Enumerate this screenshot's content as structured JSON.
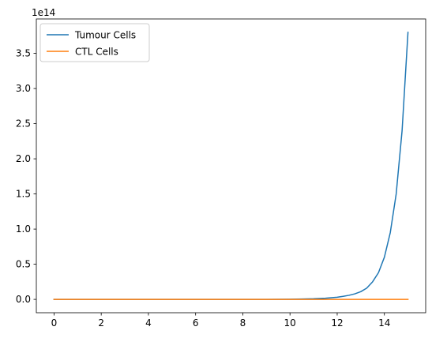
{
  "chart_data": {
    "type": "line",
    "title": "",
    "xlabel": "",
    "ylabel": "",
    "y_offset_label": "1e14",
    "xlim": [
      -0.75,
      15.75
    ],
    "ylim": [
      -0.19,
      3.99
    ],
    "x_ticks": [
      0,
      2,
      4,
      6,
      8,
      10,
      12,
      14
    ],
    "x_tick_labels": [
      "0",
      "2",
      "4",
      "6",
      "8",
      "10",
      "12",
      "14"
    ],
    "y_ticks": [
      0.0,
      0.5,
      1.0,
      1.5,
      2.0,
      2.5,
      3.0,
      3.5
    ],
    "y_tick_labels": [
      "0.0",
      "0.5",
      "1.0",
      "1.5",
      "2.0",
      "2.5",
      "3.0",
      "3.5"
    ],
    "grid": false,
    "legend_position": "upper-left",
    "series": [
      {
        "name": "Tumour Cells",
        "color": "#1f77b4",
        "x": [
          0,
          1,
          2,
          3,
          4,
          5,
          6,
          7,
          8,
          9,
          10,
          10.5,
          11,
          11.5,
          12,
          12.25,
          12.5,
          12.75,
          13,
          13.25,
          13.5,
          13.75,
          14,
          14.25,
          14.5,
          14.75,
          15
        ],
        "y": [
          0,
          0,
          0,
          0,
          0,
          0,
          0,
          0,
          0,
          0,
          0.003,
          0.005,
          0.009,
          0.017,
          0.031,
          0.043,
          0.058,
          0.079,
          0.11,
          0.16,
          0.25,
          0.38,
          0.6,
          0.95,
          1.5,
          2.4,
          3.8
        ]
      },
      {
        "name": "CTL Cells",
        "color": "#ff7f0e",
        "x": [
          0,
          15
        ],
        "y": [
          0,
          0
        ]
      }
    ]
  }
}
